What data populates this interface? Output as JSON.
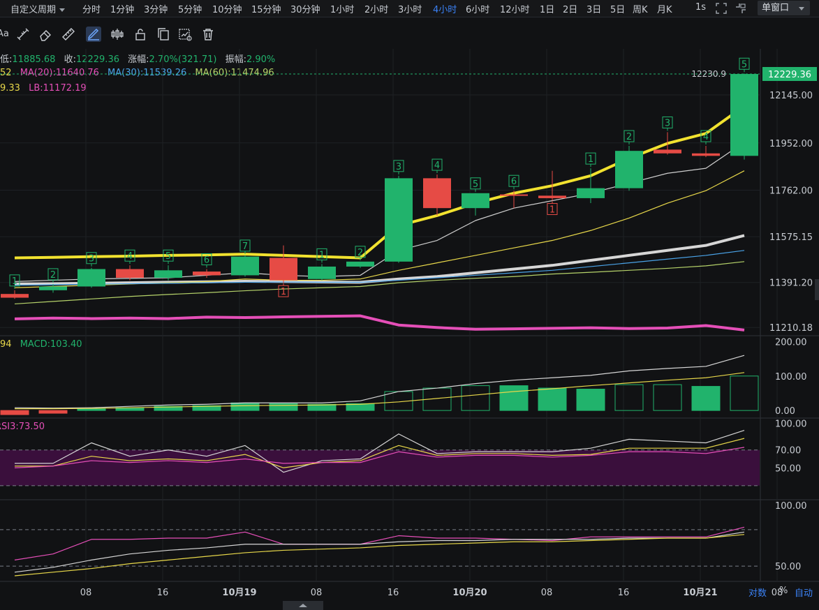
{
  "toolbar": {
    "custom_period_label": "自定义周期",
    "timeframes": [
      {
        "label": "分时",
        "active": false
      },
      {
        "label": "1分钟",
        "active": false
      },
      {
        "label": "3分钟",
        "active": false
      },
      {
        "label": "5分钟",
        "active": false
      },
      {
        "label": "10分钟",
        "active": false
      },
      {
        "label": "15分钟",
        "active": false
      },
      {
        "label": "30分钟",
        "active": false
      },
      {
        "label": "1小时",
        "active": false
      },
      {
        "label": "2小时",
        "active": false
      },
      {
        "label": "3小时",
        "active": false
      },
      {
        "label": "4小时",
        "active": true
      },
      {
        "label": "6小时",
        "active": false
      },
      {
        "label": "12小时",
        "active": false
      },
      {
        "label": "1日",
        "active": false
      },
      {
        "label": "2日",
        "active": false
      },
      {
        "label": "3日",
        "active": false
      },
      {
        "label": "5日",
        "active": false
      },
      {
        "label": "周K",
        "active": false
      },
      {
        "label": "月K",
        "active": false
      }
    ],
    "seconds_label": "1s",
    "window_mode": "单窗口"
  },
  "drawing_tools": {
    "partial_label": "Aa",
    "icons": [
      "text-tool-icon",
      "measure-tool-icon",
      "eraser-tool-icon",
      "ruler-tool-icon",
      "brush-tool-icon",
      "candle-tool-icon",
      "lock-tool-icon",
      "copy-tool-icon",
      "chart-settings-icon",
      "trash-icon"
    ]
  },
  "legend": {
    "ohlc": {
      "low_label": "低:",
      "low_value": "11885.68",
      "close_label": "收:",
      "close_value": "12229.36",
      "change_label": "涨幅:",
      "change_value": "2.70%(321.71)",
      "amp_label": "振幅:",
      "amp_value": "2.90%"
    },
    "ma": {
      "ma_prefix": "52",
      "ma20": "MA(20):11640.76",
      "ma30": "MA(30):11539.26",
      "ma60": "MA(60):11474.96"
    },
    "band": {
      "ub_partial": "9.33",
      "lb": "LB:11172.19"
    },
    "macd": {
      "prefix": "94",
      "macd": "MACD:103.40"
    },
    "rsi": {
      "rsi3": "RSI3:73.50"
    }
  },
  "chart_data": {
    "type": "candlestick",
    "interval": "4小时",
    "x_tick_labels": [
      "08",
      "16",
      "10月19",
      "08",
      "16",
      "10月20",
      "08",
      "16",
      "10月21",
      "08"
    ],
    "candles": [
      {
        "o": 11345,
        "h": 11360,
        "l": 11325,
        "c": 11330
      },
      {
        "o": 11360,
        "h": 11385,
        "l": 11350,
        "c": 11375
      },
      {
        "o": 11375,
        "h": 11450,
        "l": 11370,
        "c": 11445
      },
      {
        "o": 11445,
        "h": 11460,
        "l": 11400,
        "c": 11410
      },
      {
        "o": 11410,
        "h": 11460,
        "l": 11400,
        "c": 11440
      },
      {
        "o": 11435,
        "h": 11445,
        "l": 11410,
        "c": 11420
      },
      {
        "o": 11420,
        "h": 11500,
        "l": 11415,
        "c": 11495
      },
      {
        "o": 11490,
        "h": 11540,
        "l": 11390,
        "c": 11400
      },
      {
        "o": 11405,
        "h": 11465,
        "l": 11400,
        "c": 11455
      },
      {
        "o": 11455,
        "h": 11475,
        "l": 11450,
        "c": 11475
      },
      {
        "o": 11475,
        "h": 11820,
        "l": 11470,
        "c": 11810
      },
      {
        "o": 11810,
        "h": 11825,
        "l": 11660,
        "c": 11690
      },
      {
        "o": 11690,
        "h": 11750,
        "l": 11660,
        "c": 11750
      },
      {
        "o": 11745,
        "h": 11760,
        "l": 11690,
        "c": 11740
      },
      {
        "o": 11740,
        "h": 11840,
        "l": 11720,
        "c": 11730
      },
      {
        "o": 11730,
        "h": 11850,
        "l": 11710,
        "c": 11770
      },
      {
        "o": 11770,
        "h": 11940,
        "l": 11760,
        "c": 11920
      },
      {
        "o": 11925,
        "h": 11995,
        "l": 11905,
        "c": 11910
      },
      {
        "o": 11910,
        "h": 11940,
        "l": 11895,
        "c": 11900
      },
      {
        "o": 11900,
        "h": 12231,
        "l": 11885,
        "c": 12229
      }
    ],
    "td_labels": [
      {
        "i": 0,
        "t": "1",
        "pos": "above",
        "color": "green"
      },
      {
        "i": 1,
        "t": "2",
        "pos": "above",
        "color": "green"
      },
      {
        "i": 2,
        "t": "3",
        "pos": "above",
        "color": "green"
      },
      {
        "i": 3,
        "t": "4",
        "pos": "above",
        "color": "green"
      },
      {
        "i": 4,
        "t": "5",
        "pos": "above",
        "color": "green"
      },
      {
        "i": 5,
        "t": "6",
        "pos": "above",
        "color": "green"
      },
      {
        "i": 6,
        "t": "7",
        "pos": "above",
        "color": "green"
      },
      {
        "i": 7,
        "t": "1",
        "pos": "below",
        "color": "red"
      },
      {
        "i": 8,
        "t": "1",
        "pos": "above",
        "color": "green"
      },
      {
        "i": 9,
        "t": "2",
        "pos": "above",
        "color": "green"
      },
      {
        "i": 10,
        "t": "3",
        "pos": "above",
        "color": "green"
      },
      {
        "i": 11,
        "t": "4",
        "pos": "above",
        "color": "green"
      },
      {
        "i": 12,
        "t": "5",
        "pos": "above",
        "color": "green"
      },
      {
        "i": 13,
        "t": "6",
        "pos": "above",
        "color": "green"
      },
      {
        "i": 14,
        "t": "1",
        "pos": "below",
        "color": "red"
      },
      {
        "i": 15,
        "t": "1",
        "pos": "above",
        "color": "green"
      },
      {
        "i": 16,
        "t": "2",
        "pos": "above",
        "color": "green"
      },
      {
        "i": 17,
        "t": "3",
        "pos": "above",
        "color": "green"
      },
      {
        "i": 18,
        "t": "4",
        "pos": "above",
        "color": "green"
      },
      {
        "i": 19,
        "t": "5",
        "pos": "above",
        "color": "green"
      }
    ],
    "lines": [
      {
        "name": "yellow-thick",
        "color": "#f2e22f",
        "width": 4,
        "values": [
          11490,
          11492,
          11495,
          11497,
          11500,
          11502,
          11505,
          11500,
          11495,
          11490,
          11620,
          11660,
          11710,
          11750,
          11780,
          11820,
          11890,
          11950,
          11990,
          12100
        ]
      },
      {
        "name": "white-thin",
        "color": "#cfcfcf",
        "width": 1.2,
        "values": [
          11395,
          11400,
          11405,
          11408,
          11410,
          11420,
          11430,
          11420,
          11415,
          11420,
          11520,
          11560,
          11640,
          11690,
          11720,
          11750,
          11790,
          11830,
          11850,
          11955
        ]
      },
      {
        "name": "white-thick",
        "color": "#d6d6d6",
        "width": 4,
        "values": [
          11385,
          11386,
          11388,
          11390,
          11392,
          11394,
          11396,
          11395,
          11393,
          11392,
          11405,
          11415,
          11430,
          11445,
          11460,
          11480,
          11500,
          11520,
          11540,
          11580
        ]
      },
      {
        "name": "yellow-thin",
        "color": "#e8d84a",
        "width": 1.2,
        "values": [
          11370,
          11375,
          11380,
          11385,
          11390,
          11395,
          11405,
          11400,
          11400,
          11405,
          11440,
          11470,
          11500,
          11530,
          11560,
          11600,
          11650,
          11710,
          11760,
          11840
        ]
      },
      {
        "name": "blue-thin",
        "color": "#4aa3e8",
        "width": 1.2,
        "values": [
          11380,
          11382,
          11384,
          11386,
          11388,
          11390,
          11392,
          11393,
          11392,
          11392,
          11400,
          11410,
          11420,
          11430,
          11440,
          11455,
          11470,
          11485,
          11500,
          11520
        ]
      },
      {
        "name": "lightgreen-thin",
        "color": "#b6d36a",
        "width": 1.2,
        "values": [
          11305,
          11315,
          11325,
          11335,
          11343,
          11350,
          11358,
          11365,
          11370,
          11375,
          11390,
          11400,
          11408,
          11415,
          11425,
          11432,
          11440,
          11448,
          11458,
          11475
        ]
      },
      {
        "name": "magenta-thick",
        "color": "#e54fb8",
        "width": 4,
        "values": [
          11245,
          11248,
          11246,
          11248,
          11246,
          11252,
          11250,
          11253,
          11255,
          11257,
          11220,
          11210,
          11203,
          11205,
          11207,
          11209,
          11206,
          11208,
          11218,
          11200
        ]
      }
    ],
    "y_axis": {
      "min": 11180,
      "max": 12330,
      "ticks": [
        12145.0,
        11952.0,
        11762.0,
        11575.15,
        11391.2,
        11210.18
      ]
    },
    "last_price_label": "12229.36",
    "high_marker_label": "12230.9",
    "macd_panel": {
      "y_ticks": [
        "200.00",
        "100.00",
        "0.00"
      ],
      "min": -20,
      "max": 215,
      "hist": [
        -12,
        -8,
        5,
        8,
        12,
        14,
        22,
        20,
        18,
        20,
        55,
        65,
        72,
        72,
        65,
        62,
        75,
        75,
        70,
        100
      ],
      "hist_filled": [
        true,
        true,
        true,
        true,
        true,
        true,
        true,
        true,
        true,
        true,
        false,
        false,
        false,
        true,
        true,
        true,
        false,
        false,
        true,
        false
      ],
      "dif": [
        8,
        7,
        8,
        12,
        16,
        18,
        22,
        22,
        22,
        28,
        55,
        65,
        78,
        88,
        95,
        102,
        115,
        122,
        128,
        160
      ],
      "dea": [
        5,
        5,
        6,
        8,
        10,
        12,
        14,
        15,
        16,
        18,
        25,
        35,
        45,
        55,
        63,
        72,
        80,
        88,
        95,
        110
      ]
    },
    "rsi_panel": {
      "y_ticks": [
        "100.00",
        "70.00",
        "50.00"
      ],
      "min": 15,
      "max": 105,
      "rsi_white": [
        55,
        55,
        78,
        63,
        70,
        63,
        75,
        45,
        58,
        60,
        88,
        66,
        68,
        68,
        68,
        72,
        82,
        80,
        78,
        92
      ],
      "rsi_yellow": [
        52,
        52,
        63,
        58,
        60,
        58,
        65,
        50,
        56,
        58,
        75,
        64,
        66,
        66,
        64,
        65,
        72,
        72,
        72,
        83
      ],
      "rsi_pink": [
        50,
        52,
        58,
        56,
        58,
        56,
        60,
        55,
        56,
        56,
        68,
        62,
        64,
        64,
        62,
        64,
        68,
        68,
        66,
        73
      ]
    },
    "kdj_panel": {
      "y_ticks": [
        "100.00",
        "50.00"
      ],
      "min": 38,
      "max": 104,
      "k": [
        55,
        60,
        72,
        72,
        73,
        73,
        78,
        68,
        68,
        68,
        75,
        73,
        73,
        72,
        71,
        74,
        74,
        74,
        74,
        82
      ],
      "d": [
        45,
        49,
        55,
        60,
        63,
        65,
        68,
        68,
        68,
        68,
        70,
        71,
        71,
        72,
        72,
        72,
        73,
        73,
        73,
        78
      ],
      "j": [
        42,
        45,
        48,
        52,
        55,
        58,
        61,
        63,
        64,
        65,
        67,
        68,
        69,
        70,
        70,
        71,
        72,
        73,
        73,
        76
      ]
    }
  },
  "bottom_bar": {
    "log_label": "对数",
    "percent_label": "%",
    "auto_label": "自动"
  }
}
